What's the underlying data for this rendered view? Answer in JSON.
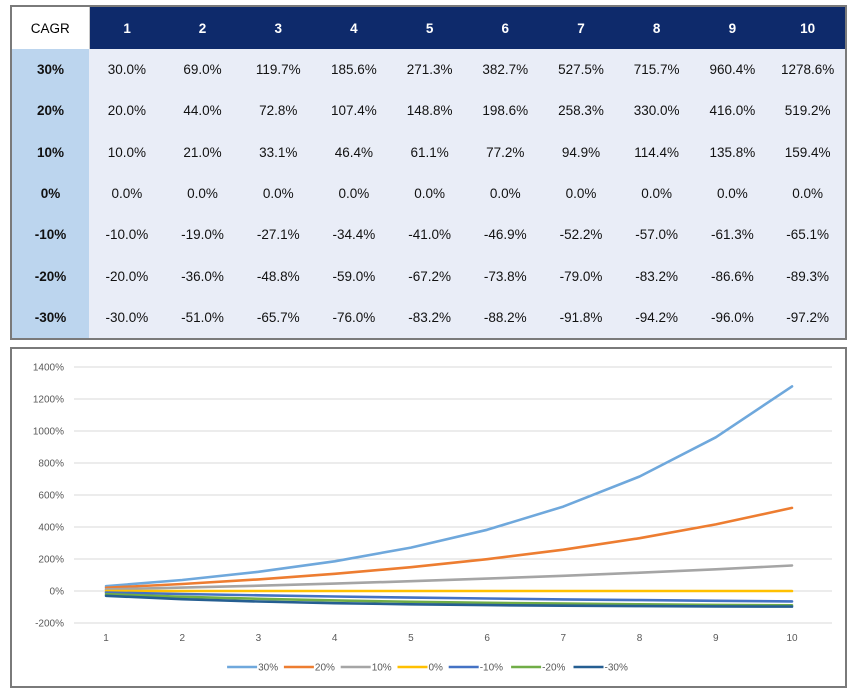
{
  "table": {
    "corner_label": "CAGR",
    "columns": [
      "1",
      "2",
      "3",
      "4",
      "5",
      "6",
      "7",
      "8",
      "9",
      "10"
    ],
    "rows": [
      {
        "label": "30%",
        "cells": [
          "30.0%",
          "69.0%",
          "119.7%",
          "185.6%",
          "271.3%",
          "382.7%",
          "527.5%",
          "715.7%",
          "960.4%",
          "1278.6%"
        ]
      },
      {
        "label": "20%",
        "cells": [
          "20.0%",
          "44.0%",
          "72.8%",
          "107.4%",
          "148.8%",
          "198.6%",
          "258.3%",
          "330.0%",
          "416.0%",
          "519.2%"
        ]
      },
      {
        "label": "10%",
        "cells": [
          "10.0%",
          "21.0%",
          "33.1%",
          "46.4%",
          "61.1%",
          "77.2%",
          "94.9%",
          "114.4%",
          "135.8%",
          "159.4%"
        ]
      },
      {
        "label": "0%",
        "cells": [
          "0.0%",
          "0.0%",
          "0.0%",
          "0.0%",
          "0.0%",
          "0.0%",
          "0.0%",
          "0.0%",
          "0.0%",
          "0.0%"
        ]
      },
      {
        "label": "-10%",
        "cells": [
          "-10.0%",
          "-19.0%",
          "-27.1%",
          "-34.4%",
          "-41.0%",
          "-46.9%",
          "-52.2%",
          "-57.0%",
          "-61.3%",
          "-65.1%"
        ]
      },
      {
        "label": "-20%",
        "cells": [
          "-20.0%",
          "-36.0%",
          "-48.8%",
          "-59.0%",
          "-67.2%",
          "-73.8%",
          "-79.0%",
          "-83.2%",
          "-86.6%",
          "-89.3%"
        ]
      },
      {
        "label": "-30%",
        "cells": [
          "-30.0%",
          "-51.0%",
          "-65.7%",
          "-76.0%",
          "-83.2%",
          "-88.2%",
          "-91.8%",
          "-94.2%",
          "-96.0%",
          "-97.2%"
        ]
      }
    ],
    "colors": {
      "header": "#0e2a6b",
      "rowhead": "#bcd5ee",
      "body": "#e9edf7"
    }
  },
  "chart_data": {
    "type": "line",
    "x": [
      1,
      2,
      3,
      4,
      5,
      6,
      7,
      8,
      9,
      10
    ],
    "ylim": [
      -200,
      1400
    ],
    "yticks": [
      -200,
      0,
      200,
      400,
      600,
      800,
      1000,
      1200,
      1400
    ],
    "ytick_labels": [
      "-200%",
      "0%",
      "200%",
      "400%",
      "600%",
      "800%",
      "1000%",
      "1200%",
      "1400%"
    ],
    "xtick_labels": [
      "1",
      "2",
      "3",
      "4",
      "5",
      "6",
      "7",
      "8",
      "9",
      "10"
    ],
    "grid": true,
    "legend_position": "bottom",
    "series": [
      {
        "name": "30%",
        "color": "#6fa8dc",
        "values": [
          30.0,
          69.0,
          119.7,
          185.6,
          271.3,
          382.7,
          527.5,
          715.7,
          960.4,
          1278.6
        ]
      },
      {
        "name": "20%",
        "color": "#ed7d31",
        "values": [
          20.0,
          44.0,
          72.8,
          107.4,
          148.8,
          198.6,
          258.3,
          330.0,
          416.0,
          519.2
        ]
      },
      {
        "name": "10%",
        "color": "#a5a5a5",
        "values": [
          10.0,
          21.0,
          33.1,
          46.4,
          61.1,
          77.2,
          94.9,
          114.4,
          135.8,
          159.4
        ]
      },
      {
        "name": "0%",
        "color": "#ffc000",
        "values": [
          0,
          0,
          0,
          0,
          0,
          0,
          0,
          0,
          0,
          0
        ]
      },
      {
        "name": "-10%",
        "color": "#4472c4",
        "values": [
          -10.0,
          -19.0,
          -27.1,
          -34.4,
          -41.0,
          -46.9,
          -52.2,
          -57.0,
          -61.3,
          -65.1
        ]
      },
      {
        "name": "-20%",
        "color": "#70ad47",
        "values": [
          -20.0,
          -36.0,
          -48.8,
          -59.0,
          -67.2,
          -73.8,
          -79.0,
          -83.2,
          -86.6,
          -89.3
        ]
      },
      {
        "name": "-30%",
        "color": "#255e91",
        "values": [
          -30.0,
          -51.0,
          -65.7,
          -76.0,
          -83.2,
          -88.2,
          -91.8,
          -94.2,
          -96.0,
          -97.2
        ]
      }
    ]
  }
}
